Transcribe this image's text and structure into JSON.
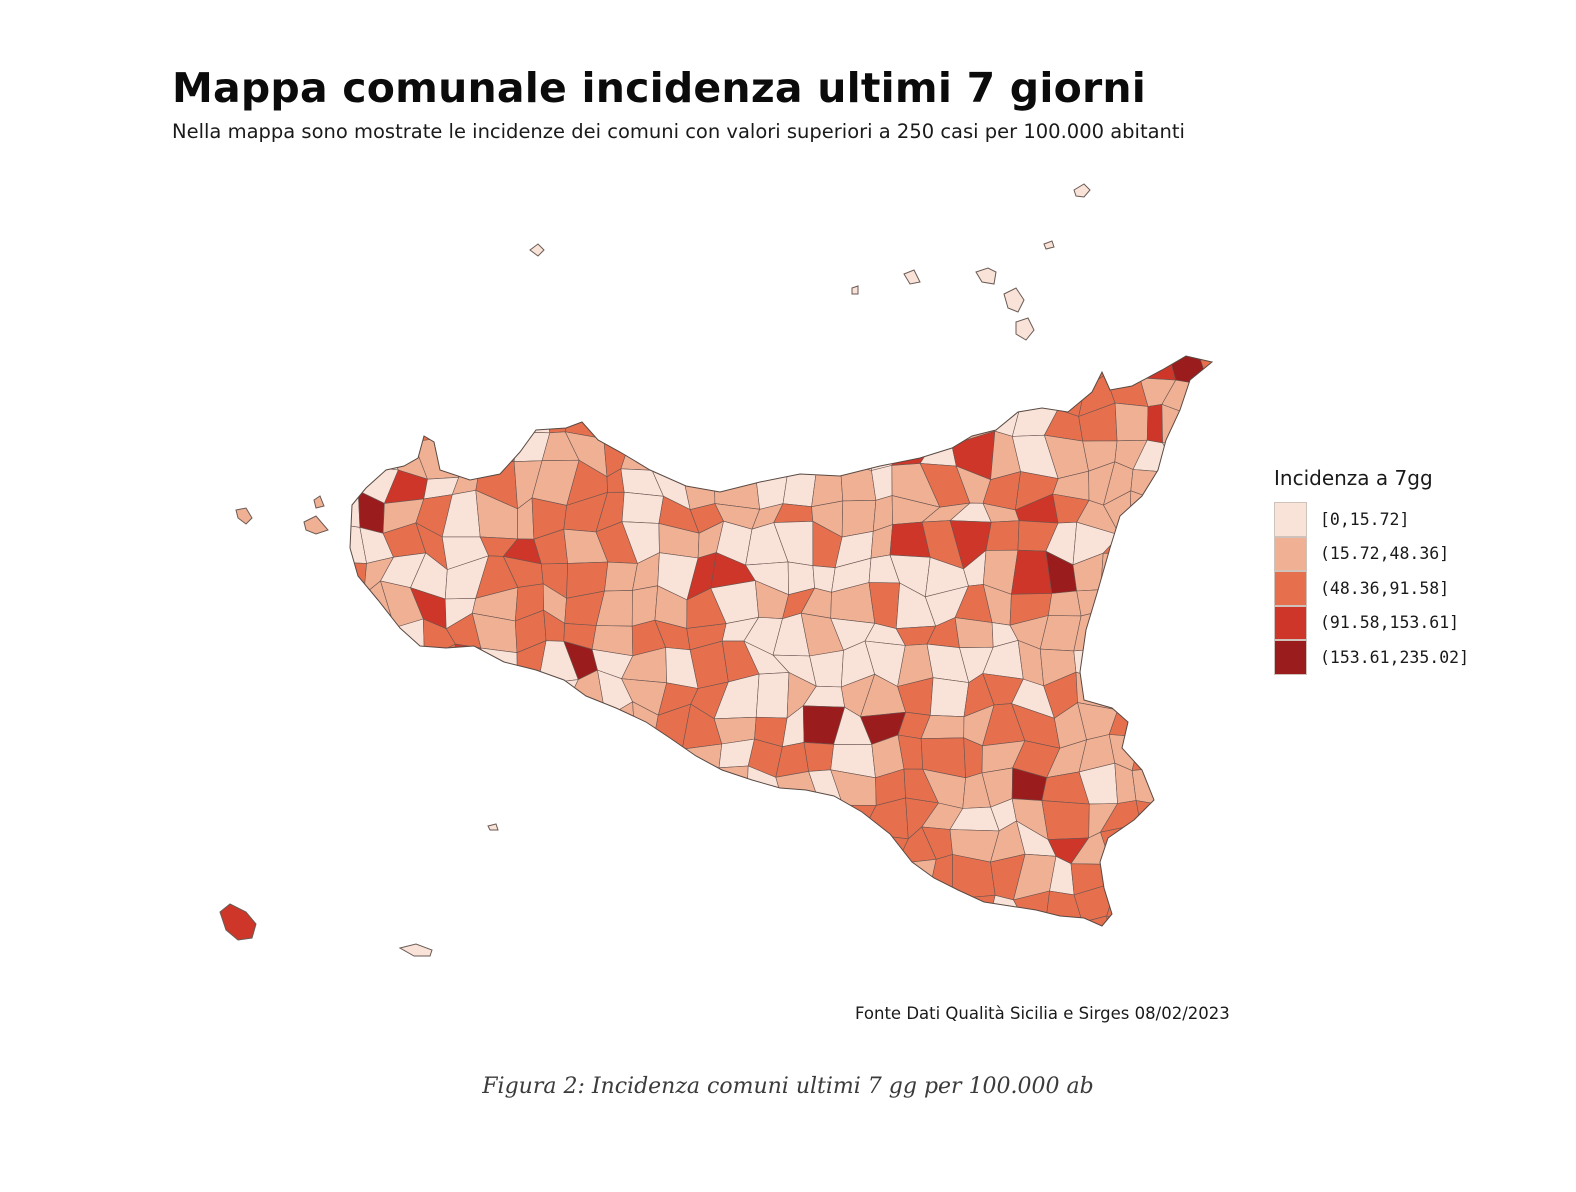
{
  "title": "Mappa comunale incidenza ultimi 7 giorni",
  "subtitle": "Nella mappa sono mostrate le incidenze dei comuni con valori superiori a 250 casi per 100.000 abitanti",
  "legend": {
    "title": "Incidenza a 7gg",
    "classes": [
      {
        "label": "[0,15.72]",
        "color": "#f9e3d8"
      },
      {
        "label": "(15.72,48.36]",
        "color": "#f0b094"
      },
      {
        "label": "(48.36,91.58]",
        "color": "#e66f4d"
      },
      {
        "label": "(91.58,153.61]",
        "color": "#cd3629"
      },
      {
        "label": "(153.61,235.02]",
        "color": "#9b1c1c"
      }
    ]
  },
  "source": "Fonte Dati Qualità Sicilia e Sirges 08/02/2023",
  "caption": "Figura 2: Incidenza comuni ultimi 7 gg per 100.000 ab"
}
